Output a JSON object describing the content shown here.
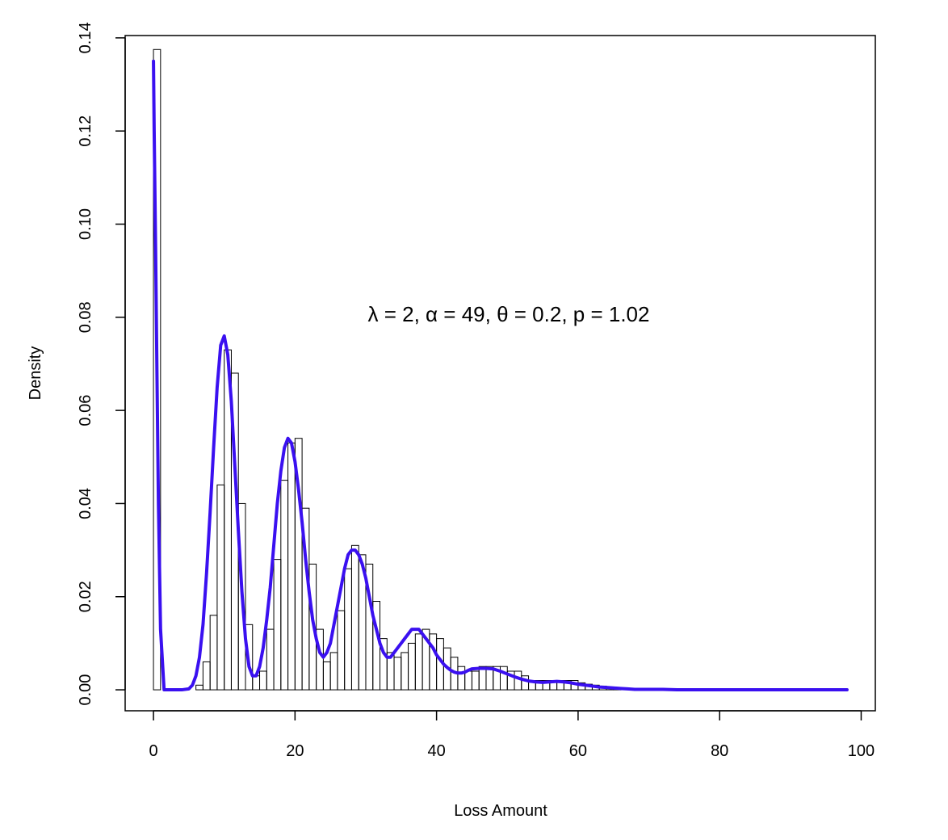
{
  "chart_data": {
    "type": "bar",
    "xlabel": "Loss Amount",
    "ylabel": "Density",
    "annotation": "λ = 2, α = 49, θ = 0.2, p = 1.02",
    "xlim": [
      -4,
      102
    ],
    "ylim": [
      -0.0045,
      0.1405
    ],
    "x_ticks": [
      0,
      20,
      40,
      60,
      80,
      100
    ],
    "x_tick_labels": [
      "0",
      "20",
      "40",
      "60",
      "80",
      "100"
    ],
    "y_ticks": [
      0.0,
      0.02,
      0.04,
      0.06,
      0.08,
      0.1,
      0.12,
      0.14
    ],
    "y_tick_labels": [
      "0.00",
      "0.02",
      "0.04",
      "0.06",
      "0.08",
      "0.10",
      "0.12",
      "0.14"
    ],
    "grid": false,
    "histogram": {
      "bin_width": 1,
      "bin_start": 0,
      "densities": [
        0.1375,
        0.0,
        0.0,
        0.0,
        0.0,
        0.0,
        0.001,
        0.006,
        0.016,
        0.044,
        0.073,
        0.068,
        0.04,
        0.014,
        0.003,
        0.004,
        0.013,
        0.028,
        0.045,
        0.053,
        0.054,
        0.039,
        0.027,
        0.013,
        0.006,
        0.008,
        0.017,
        0.026,
        0.031,
        0.029,
        0.027,
        0.019,
        0.011,
        0.008,
        0.007,
        0.008,
        0.01,
        0.012,
        0.013,
        0.012,
        0.011,
        0.009,
        0.007,
        0.005,
        0.004,
        0.004,
        0.005,
        0.005,
        0.005,
        0.005,
        0.004,
        0.004,
        0.003,
        0.002,
        0.002,
        0.002,
        0.002,
        0.002,
        0.002,
        0.002,
        0.0015,
        0.0012,
        0.001,
        0.0008,
        0.0006,
        0.0005,
        0.0004,
        0.0003,
        0.0002,
        0.0002,
        0.0001,
        0.0001,
        0.0001,
        0.0001,
        0.0001,
        0.0001,
        0.0,
        0.0,
        0.0,
        0.0,
        0.0,
        0.0,
        0.0,
        0.0,
        0.0,
        0.0,
        0.0,
        0.0,
        0.0,
        0.0,
        0.0,
        0.0,
        0.0,
        0.0,
        0.0,
        0.0,
        0.0,
        0.0
      ],
      "border_color": "#000000"
    },
    "density_curve": {
      "color": "#3a10f0",
      "x": [
        0.0,
        0.1,
        0.3,
        0.5,
        0.7,
        1.0,
        1.5,
        2,
        3,
        4,
        5,
        5.5,
        6,
        6.5,
        7,
        7.5,
        8,
        8.5,
        9,
        9.5,
        10,
        10.5,
        11,
        11.5,
        12,
        12.5,
        13,
        13.5,
        14,
        14.5,
        15,
        15.5,
        16,
        16.5,
        17,
        17.5,
        18,
        18.5,
        19,
        19.5,
        20,
        20.5,
        21,
        21.5,
        22,
        22.5,
        23,
        23.5,
        24,
        24.5,
        25,
        25.5,
        26,
        26.5,
        27,
        27.5,
        28,
        28.5,
        29,
        29.5,
        30,
        30.5,
        31,
        31.5,
        32,
        32.5,
        33,
        33.5,
        34,
        34.5,
        35,
        35.5,
        36,
        36.5,
        37,
        37.5,
        38,
        38.5,
        39,
        39.5,
        40,
        40.5,
        41,
        41.5,
        42,
        42.5,
        43,
        43.5,
        44,
        44.5,
        45,
        46,
        47,
        48,
        49,
        50,
        51,
        52,
        53,
        54,
        55,
        56,
        57,
        58,
        59,
        60,
        61,
        62,
        63,
        64,
        65,
        66,
        67,
        68,
        70,
        72,
        74,
        76,
        80,
        85,
        90,
        95,
        98
      ],
      "y": [
        0.135,
        0.12,
        0.095,
        0.067,
        0.04,
        0.013,
        0.0,
        0.0,
        0.0,
        0.0,
        0.0002,
        0.001,
        0.003,
        0.007,
        0.014,
        0.025,
        0.038,
        0.052,
        0.065,
        0.074,
        0.076,
        0.072,
        0.062,
        0.048,
        0.034,
        0.021,
        0.011,
        0.005,
        0.003,
        0.003,
        0.005,
        0.009,
        0.015,
        0.022,
        0.031,
        0.04,
        0.047,
        0.052,
        0.054,
        0.053,
        0.049,
        0.043,
        0.036,
        0.028,
        0.021,
        0.015,
        0.011,
        0.008,
        0.007,
        0.008,
        0.01,
        0.014,
        0.018,
        0.022,
        0.026,
        0.029,
        0.03,
        0.03,
        0.029,
        0.027,
        0.024,
        0.02,
        0.016,
        0.013,
        0.01,
        0.008,
        0.007,
        0.007,
        0.008,
        0.009,
        0.01,
        0.011,
        0.012,
        0.013,
        0.013,
        0.013,
        0.012,
        0.011,
        0.01,
        0.009,
        0.0075,
        0.0065,
        0.0055,
        0.0048,
        0.0042,
        0.0038,
        0.0036,
        0.0036,
        0.0038,
        0.0042,
        0.0045,
        0.0046,
        0.0046,
        0.0045,
        0.004,
        0.0034,
        0.0028,
        0.0023,
        0.0019,
        0.0017,
        0.0016,
        0.0017,
        0.0018,
        0.0017,
        0.0015,
        0.0012,
        0.001,
        0.0008,
        0.0006,
        0.0005,
        0.0004,
        0.0003,
        0.0002,
        0.0001,
        0.0001,
        0.0001,
        0.0,
        0.0,
        0.0,
        0.0,
        0.0,
        0.0,
        0.0
      ]
    }
  }
}
